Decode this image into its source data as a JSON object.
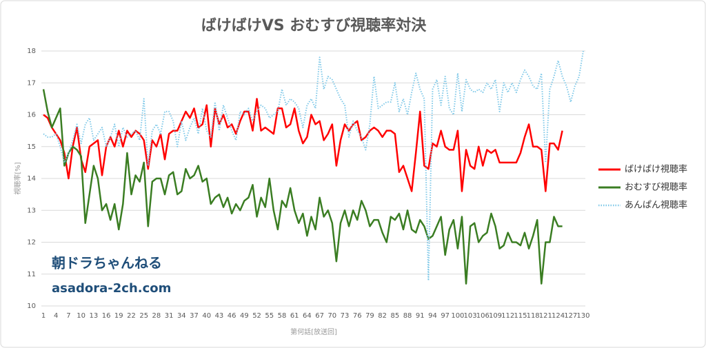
{
  "chart_data": {
    "type": "line",
    "title": "ばけばけVS おむすび視聴率対決",
    "y_axis_label": "視聴率[%]",
    "x_axis_label": "第何話[放送回]",
    "watermark": [
      "朝ドラちゃんねる",
      "asadora-2ch.com"
    ],
    "categories": [
      1,
      null,
      null,
      4,
      null,
      null,
      7,
      null,
      null,
      10,
      null,
      null,
      13,
      null,
      null,
      16,
      null,
      null,
      19,
      null,
      null,
      22,
      null,
      null,
      25,
      null,
      null,
      28,
      null,
      null,
      31,
      null,
      null,
      34,
      null,
      null,
      37,
      null,
      null,
      40,
      null,
      null,
      43,
      null,
      null,
      46,
      null,
      null,
      49,
      null,
      null,
      52,
      null,
      null,
      55,
      null,
      null,
      58,
      null,
      null,
      61,
      null,
      null,
      64,
      null,
      null,
      67,
      null,
      null,
      70,
      null,
      null,
      73,
      null,
      null,
      76,
      null,
      null,
      79,
      null,
      null,
      82,
      null,
      null,
      85,
      null,
      null,
      88,
      null,
      null,
      91,
      null,
      null,
      94,
      null,
      null,
      97,
      null,
      null,
      100,
      null,
      null,
      103,
      null,
      null,
      106,
      null,
      null,
      109,
      null,
      null,
      112,
      null,
      null,
      115,
      null,
      null,
      118,
      null,
      null,
      121,
      null,
      null,
      124,
      null,
      null,
      127,
      null,
      null,
      130
    ],
    "ylim": [
      10,
      18
    ],
    "yticks": [
      10,
      11,
      12,
      13,
      14,
      15,
      16,
      17,
      18
    ],
    "grid": true,
    "legend": "right",
    "series": [
      {
        "name": "ばけばけ視聴率",
        "color": "#ff0000",
        "style": "solid",
        "values": [
          16.0,
          15.9,
          15.6,
          15.4,
          15.2,
          14.8,
          14.0,
          15.0,
          15.6,
          14.6,
          14.2,
          15.0,
          15.1,
          15.2,
          14.1,
          15.0,
          15.3,
          15.0,
          15.5,
          15.0,
          15.5,
          15.3,
          15.5,
          15.4,
          15.2,
          14.3,
          15.2,
          15.0,
          15.4,
          14.6,
          15.4,
          15.5,
          15.5,
          15.8,
          16.1,
          15.9,
          16.2,
          15.6,
          15.7,
          16.3,
          15.0,
          16.2,
          15.7,
          16.0,
          15.6,
          15.7,
          15.4,
          15.8,
          16.1,
          16.1,
          15.5,
          16.5,
          15.5,
          15.6,
          15.5,
          15.4,
          16.2,
          16.2,
          15.6,
          15.7,
          16.2,
          15.5,
          15.1,
          15.3,
          16.0,
          15.7,
          15.8,
          15.2,
          15.4,
          15.7,
          14.4,
          15.2,
          15.7,
          15.5,
          15.7,
          15.8,
          15.2,
          15.3,
          15.5,
          15.6,
          15.5,
          15.3,
          15.5,
          15.5,
          15.4,
          14.2,
          14.4,
          14.0,
          13.6,
          14.8,
          16.1,
          14.4,
          14.3,
          15.1,
          15.0,
          15.5,
          15.0,
          14.9,
          14.9,
          15.5,
          13.6,
          14.9,
          14.4,
          14.3,
          15.0,
          14.4,
          14.9,
          14.8,
          14.9,
          14.5,
          14.5,
          14.5,
          14.5,
          14.5,
          14.8,
          15.3,
          15.7,
          15.0,
          15.0,
          14.9,
          13.6,
          15.1,
          15.1,
          14.9,
          15.5,
          null,
          null,
          null,
          null,
          null
        ]
      },
      {
        "name": "おむすび視聴率",
        "color": "#3a7d22",
        "style": "solid",
        "values": [
          16.8,
          16.1,
          15.6,
          15.9,
          16.2,
          14.4,
          14.8,
          15.0,
          14.9,
          14.7,
          12.6,
          13.5,
          14.4,
          14.0,
          13.0,
          13.2,
          12.7,
          13.2,
          12.4,
          13.2,
          14.8,
          13.5,
          14.1,
          13.9,
          14.5,
          12.5,
          13.9,
          14.0,
          14.0,
          13.5,
          14.1,
          14.2,
          13.5,
          13.6,
          14.3,
          14.0,
          14.1,
          14.4,
          13.9,
          14.0,
          13.2,
          13.4,
          13.5,
          13.1,
          13.4,
          12.9,
          13.2,
          13.0,
          13.3,
          13.4,
          13.8,
          12.8,
          13.4,
          13.1,
          14.0,
          13.0,
          12.4,
          13.3,
          13.1,
          13.7,
          13.0,
          12.6,
          12.9,
          12.2,
          12.8,
          12.4,
          13.4,
          12.8,
          13.0,
          12.6,
          11.4,
          12.6,
          13.0,
          12.5,
          13.0,
          12.7,
          13.3,
          13.0,
          12.5,
          12.7,
          12.7,
          12.3,
          12.0,
          12.8,
          12.7,
          12.9,
          12.4,
          13.0,
          12.4,
          12.3,
          12.7,
          12.5,
          12.1,
          12.2,
          12.5,
          12.8,
          11.6,
          12.4,
          12.7,
          11.8,
          12.8,
          10.7,
          12.5,
          12.6,
          12.0,
          12.2,
          12.3,
          12.9,
          12.5,
          11.8,
          11.9,
          12.3,
          12.0,
          12.0,
          11.9,
          12.3,
          11.8,
          12.2,
          12.7,
          10.7,
          12.0,
          12.0,
          12.8,
          12.5,
          12.5,
          null,
          null,
          null,
          null,
          null
        ]
      },
      {
        "name": "あんぱん視聴率",
        "color": "#7ec8e8",
        "style": "dotted",
        "values": [
          15.4,
          15.3,
          15.3,
          15.4,
          15.0,
          14.5,
          14.8,
          15.2,
          15.7,
          15.1,
          15.7,
          15.9,
          15.2,
          15.4,
          15.6,
          15.0,
          15.3,
          15.7,
          15.0,
          15.6,
          15.3,
          15.4,
          15.5,
          15.2,
          16.5,
          14.4,
          15.5,
          15.7,
          15.4,
          16.1,
          16.1,
          15.8,
          15.0,
          15.8,
          15.2,
          15.6,
          15.9,
          15.4,
          16.2,
          15.5,
          15.3,
          16.4,
          15.5,
          16.3,
          15.9,
          15.5,
          15.2,
          16.1,
          16.0,
          16.2,
          15.8,
          16.1,
          16.3,
          16.2,
          15.9,
          16.0,
          16.1,
          16.8,
          16.3,
          16.5,
          16.4,
          16.2,
          15.6,
          16.3,
          16.5,
          16.2,
          17.8,
          16.8,
          17.2,
          17.1,
          16.8,
          16.5,
          16.3,
          15.3,
          15.8,
          15.5,
          15.3,
          14.9,
          15.7,
          17.2,
          16.2,
          16.3,
          16.4,
          16.4,
          17.0,
          16.1,
          16.5,
          16.0,
          16.7,
          17.3,
          16.8,
          16.5,
          10.8,
          16.8,
          17.1,
          16.3,
          17.2,
          16.2,
          16.0,
          17.3,
          16.1,
          17.1,
          16.8,
          16.7,
          16.8,
          16.7,
          17.0,
          16.8,
          17.1,
          16.1,
          17.0,
          16.7,
          17.0,
          16.7,
          17.1,
          17.4,
          17.2,
          16.9,
          16.8,
          17.3,
          14.5,
          16.8,
          17.2,
          17.7,
          17.2,
          16.9,
          16.4,
          16.9,
          17.2,
          18.0
        ]
      }
    ]
  }
}
